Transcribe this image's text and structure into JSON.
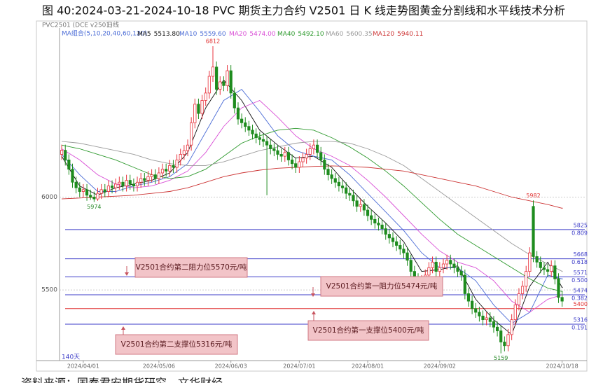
{
  "title": "图 40:2024-03-21-2024-10-18 PVC 期货主力合约 V2501 日 K 线走势图黄金分割线和水平线技术分析",
  "source": "资料来源：国泰君安期货研究，文华财经",
  "chart_data": {
    "type": "candlestick",
    "symbol": "PVC2501 (DCE v2501)",
    "period": "日线",
    "ma_group": "MA组合(5,10,20,40,60,120)",
    "days_label": "140天",
    "up_color": "#e8323c",
    "down_color": "#1e8c1e",
    "ylim": [
      5120,
      6910
    ],
    "yticks": [
      5500,
      6000
    ],
    "grid": true,
    "xlim": [
      -0.6,
      145.3
    ],
    "xticks": [
      {
        "value": 6,
        "label": "2024/04/01"
      },
      {
        "value": 27,
        "label": "2024/05/06"
      },
      {
        "value": 47,
        "label": "2024/06/03"
      },
      {
        "value": 66,
        "label": "2024/07/01"
      },
      {
        "value": 85,
        "label": "2024/08/01"
      },
      {
        "value": 105,
        "label": "2024/09/02"
      },
      {
        "value": 139,
        "label": "2024/10/18"
      }
    ],
    "candles": {
      "open": [
        6230,
        6252,
        6200,
        6150,
        6080,
        6050,
        6030,
        6040,
        6010,
        6000,
        5990,
        6020,
        6040,
        6030,
        6060,
        6050,
        6070,
        6080,
        6060,
        6090,
        6070,
        6060,
        6080,
        6100,
        6090,
        6110,
        6120,
        6100,
        6130,
        6150,
        6140,
        6170,
        6160,
        6200,
        6230,
        6250,
        6280,
        6400,
        6500,
        6450,
        6520,
        6560,
        6650,
        6700,
        6580,
        6620,
        6600,
        6680,
        6560,
        6480,
        6420,
        6400,
        6380,
        6360,
        6340,
        6320,
        6310,
        6300,
        6280,
        6260,
        6250,
        6230,
        6220,
        6240,
        6200,
        6180,
        6160,
        6190,
        6210,
        6230,
        6260,
        6280,
        6240,
        6200,
        6150,
        6120,
        6100,
        6080,
        6060,
        6050,
        6020,
        6010,
        5980,
        5950,
        5960,
        5930,
        5900,
        5880,
        5860,
        5850,
        5830,
        5800,
        5780,
        5760,
        5740,
        5720,
        5700,
        5660,
        5600,
        5560,
        5540,
        5550,
        5580,
        5620,
        5650,
        5600,
        5620,
        5640,
        5660,
        5640,
        5620,
        5600,
        5580,
        5480,
        5440,
        5400,
        5380,
        5360,
        5340,
        5350,
        5330,
        5300,
        5280,
        5220,
        5200,
        5260,
        5340,
        5420,
        5480,
        5520,
        5600,
        5950,
        5680,
        5650,
        5620,
        5610,
        5600,
        5630,
        5560,
        5460
      ],
      "high": [
        6282,
        6282,
        6230,
        6180,
        6110,
        6080,
        6070,
        6070,
        6040,
        6030,
        6050,
        6070,
        6070,
        6090,
        6090,
        6100,
        6110,
        6110,
        6120,
        6120,
        6100,
        6110,
        6130,
        6130,
        6140,
        6150,
        6150,
        6160,
        6180,
        6180,
        6200,
        6200,
        6230,
        6260,
        6280,
        6310,
        6430,
        6530,
        6530,
        6550,
        6590,
        6680,
        6812,
        6730,
        6650,
        6650,
        6710,
        6710,
        6590,
        6510,
        6450,
        6430,
        6410,
        6390,
        6370,
        6350,
        6340,
        6330,
        6310,
        6290,
        6280,
        6260,
        6270,
        6270,
        6230,
        6210,
        6220,
        6240,
        6260,
        6290,
        6310,
        6310,
        6270,
        6230,
        6180,
        6150,
        6130,
        6110,
        6090,
        6080,
        6050,
        6040,
        6010,
        5990,
        5990,
        5960,
        5930,
        5910,
        5890,
        5880,
        5860,
        5830,
        5810,
        5790,
        5770,
        5750,
        5730,
        5690,
        5630,
        5590,
        5580,
        5610,
        5650,
        5680,
        5680,
        5650,
        5670,
        5690,
        5690,
        5670,
        5650,
        5630,
        5610,
        5510,
        5470,
        5430,
        5410,
        5390,
        5380,
        5380,
        5360,
        5330,
        5310,
        5250,
        5290,
        5370,
        5450,
        5510,
        5550,
        5630,
        5730,
        5982,
        5710,
        5680,
        5650,
        5640,
        5660,
        5660,
        5590,
        5490
      ],
      "low": [
        6200,
        6170,
        6120,
        6050,
        6020,
        6000,
        6000,
        5980,
        5985,
        5974,
        5980,
        5990,
        6000,
        6000,
        6020,
        6020,
        6040,
        6030,
        6030,
        6040,
        6030,
        6030,
        6050,
        6060,
        6060,
        6080,
        6070,
        6070,
        6100,
        6110,
        6110,
        6130,
        6130,
        6170,
        6200,
        6220,
        6250,
        6370,
        6420,
        6420,
        6490,
        6530,
        6620,
        6550,
        6550,
        6570,
        6570,
        6530,
        6450,
        6390,
        6370,
        6350,
        6330,
        6310,
        6290,
        6280,
        6270,
        6010,
        6230,
        6220,
        6200,
        6190,
        6190,
        6170,
        6150,
        6130,
        6130,
        6160,
        6180,
        6200,
        6230,
        6210,
        6170,
        6120,
        6090,
        6070,
        6050,
        6030,
        6020,
        5990,
        5980,
        5950,
        5920,
        5920,
        5900,
        5870,
        5850,
        5830,
        5820,
        5800,
        5770,
        5750,
        5730,
        5710,
        5690,
        5670,
        5630,
        5570,
        5530,
        5510,
        5510,
        5520,
        5550,
        5590,
        5570,
        5570,
        5590,
        5610,
        5610,
        5590,
        5570,
        5550,
        5450,
        5410,
        5370,
        5350,
        5330,
        5310,
        5310,
        5300,
        5270,
        5250,
        5159,
        5170,
        5170,
        5230,
        5310,
        5390,
        5450,
        5490,
        5570,
        5650,
        5620,
        5590,
        5580,
        5570,
        5570,
        5530,
        5430,
        5410
      ],
      "close": [
        6252,
        6200,
        6150,
        6080,
        6050,
        6030,
        6040,
        6010,
        6000,
        5990,
        6020,
        6040,
        6030,
        6060,
        6050,
        6070,
        6080,
        6060,
        6090,
        6070,
        6060,
        6080,
        6100,
        6090,
        6110,
        6120,
        6100,
        6130,
        6150,
        6140,
        6170,
        6160,
        6200,
        6230,
        6250,
        6280,
        6400,
        6500,
        6450,
        6520,
        6560,
        6650,
        6700,
        6580,
        6620,
        6600,
        6680,
        6560,
        6480,
        6420,
        6400,
        6380,
        6360,
        6340,
        6320,
        6310,
        6300,
        6280,
        6260,
        6250,
        6230,
        6220,
        6240,
        6200,
        6180,
        6160,
        6190,
        6210,
        6230,
        6260,
        6280,
        6240,
        6200,
        6150,
        6120,
        6100,
        6080,
        6060,
        6050,
        6020,
        6010,
        5980,
        5950,
        5960,
        5930,
        5900,
        5880,
        5860,
        5850,
        5830,
        5800,
        5780,
        5760,
        5740,
        5720,
        5700,
        5660,
        5600,
        5560,
        5540,
        5550,
        5580,
        5620,
        5650,
        5600,
        5620,
        5640,
        5660,
        5640,
        5620,
        5600,
        5580,
        5480,
        5440,
        5400,
        5380,
        5360,
        5340,
        5350,
        5330,
        5300,
        5280,
        5220,
        5200,
        5260,
        5340,
        5420,
        5480,
        5520,
        5600,
        5700,
        5680,
        5650,
        5620,
        5610,
        5600,
        5630,
        5560,
        5460,
        5440
      ]
    },
    "ma_x": [
      0,
      5,
      10,
      15,
      20,
      25,
      30,
      35,
      40,
      45,
      50,
      55,
      60,
      65,
      70,
      75,
      80,
      85,
      90,
      95,
      100,
      105,
      110,
      115,
      120,
      125,
      130,
      135,
      139
    ],
    "ma": [
      {
        "name": "MA5",
        "color": "#111111",
        "latest": {
          "value": 5513.8,
          "label": "5513.80"
        },
        "values": [
          6220,
          6060,
          6010,
          6050,
          6070,
          6090,
          6130,
          6240,
          6480,
          6630,
          6520,
          6360,
          6280,
          6210,
          6220,
          6160,
          6050,
          5950,
          5860,
          5760,
          5600,
          5610,
          5630,
          5450,
          5340,
          5260,
          5520,
          5650,
          5513.8
        ]
      },
      {
        "name": "MA10",
        "color": "#4b6cd6",
        "latest": {
          "value": 5559.6,
          "label": "5559.60"
        },
        "values": [
          6230,
          6120,
          6030,
          6030,
          6060,
          6080,
          6110,
          6180,
          6350,
          6520,
          6580,
          6460,
          6330,
          6250,
          6220,
          6200,
          6120,
          6020,
          5920,
          5820,
          5700,
          5620,
          5620,
          5550,
          5420,
          5320,
          5380,
          5580,
          5559.6
        ]
      },
      {
        "name": "MA20",
        "color": "#d94fd6",
        "latest": {
          "value": 5474,
          "label": "5474.00"
        },
        "values": [
          6260,
          6200,
          6120,
          6070,
          6050,
          6060,
          6090,
          6140,
          6240,
          6380,
          6480,
          6520,
          6430,
          6330,
          6260,
          6220,
          6170,
          6090,
          6000,
          5900,
          5800,
          5710,
          5650,
          5620,
          5550,
          5440,
          5380,
          5450,
          5474
        ]
      },
      {
        "name": "MA40",
        "color": "#2e9a2e",
        "latest": {
          "value": 5492.1,
          "label": "5492.10"
        },
        "values": [
          6280,
          6260,
          6230,
          6200,
          6160,
          6120,
          6100,
          6110,
          6150,
          6220,
          6290,
          6330,
          6360,
          6370,
          6360,
          6320,
          6270,
          6210,
          6140,
          6060,
          5970,
          5880,
          5800,
          5740,
          5680,
          5620,
          5560,
          5510,
          5492.1
        ]
      },
      {
        "name": "MA60",
        "color": "#9a9a9a",
        "latest": {
          "value": 5600.35,
          "label": "5600.35"
        },
        "values": [
          6300,
          6290,
          6270,
          6250,
          6230,
          6200,
          6180,
          6170,
          6170,
          6190,
          6220,
          6250,
          6270,
          6290,
          6300,
          6300,
          6290,
          6260,
          6220,
          6170,
          6100,
          6030,
          5960,
          5890,
          5820,
          5750,
          5690,
          5640,
          5600.35
        ]
      },
      {
        "name": "MA120",
        "color": "#cc3333",
        "latest": {
          "value": 5940.11,
          "label": "5940.11"
        },
        "values": [
          5990,
          5995,
          6000,
          6005,
          6010,
          6020,
          6030,
          6050,
          6080,
          6110,
          6130,
          6145,
          6155,
          6160,
          6165,
          6168,
          6165,
          6160,
          6150,
          6140,
          6120,
          6100,
          6080,
          6060,
          6030,
          6000,
          5980,
          5960,
          5940.11
        ]
      }
    ],
    "extremes": [
      {
        "x": 42,
        "value": 6812,
        "color": "#e03030"
      },
      {
        "x": 9,
        "value": 5974,
        "color": "#2a8a2a"
      },
      {
        "x": 131,
        "value": 5982,
        "color": "#e03030"
      },
      {
        "x": 122,
        "value": 5159,
        "color": "#2a8a2a"
      }
    ],
    "levels": [
      {
        "value": 5825,
        "ratio": 0.809,
        "color": "#3c3cc8"
      },
      {
        "value": 5668,
        "ratio": 0.618,
        "color": "#3c3cc8"
      },
      {
        "value": 5571,
        "ratio": {
          "value": 0.5,
          "label": "0.500"
        },
        "color": "#3c3cc8"
      },
      {
        "value": 5474,
        "ratio": 0.382,
        "color": "#3c3cc8"
      },
      {
        "value": 5400,
        "color": "#e03030"
      },
      {
        "value": 5316,
        "ratio": 0.191,
        "color": "#3c3cc8"
      }
    ],
    "callouts": [
      {
        "text": "V2501合约第二阻力位5570元/吨"
      },
      {
        "text": "V2501合约第一阻力位5474元/吨"
      },
      {
        "text": "V2501合约第一支撑位5400元/吨"
      },
      {
        "text": "V2501合约第二支撑位5316元/吨"
      }
    ]
  }
}
